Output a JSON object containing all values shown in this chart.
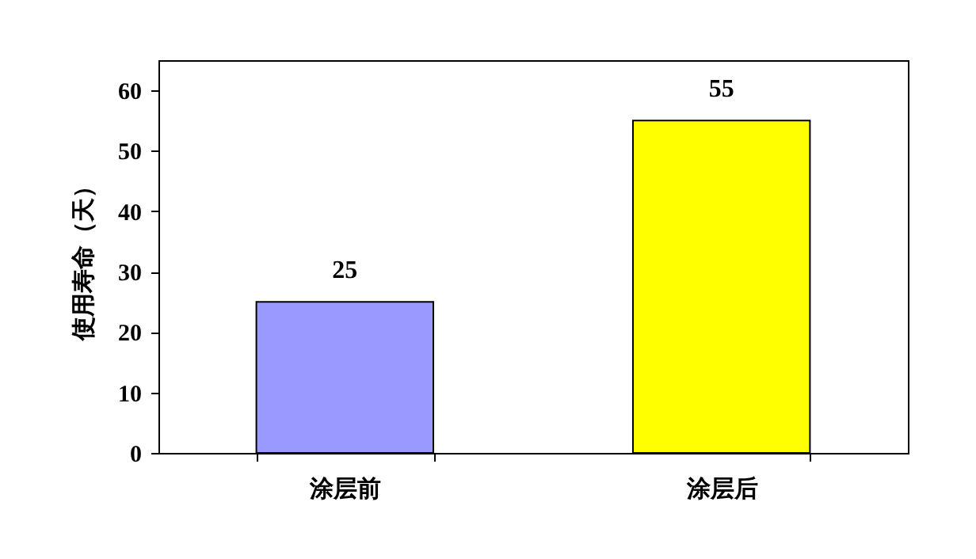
{
  "chart_data": {
    "type": "bar",
    "ylabel": "使用寿命（天）",
    "categories": [
      "涂层前",
      "涂层后"
    ],
    "values": [
      25,
      55
    ],
    "colors": [
      "#9999ff",
      "#ffff00"
    ],
    "ylim": [
      0,
      65
    ],
    "yticks": [
      0,
      10,
      20,
      30,
      40,
      50,
      60
    ],
    "data_labels": true
  }
}
